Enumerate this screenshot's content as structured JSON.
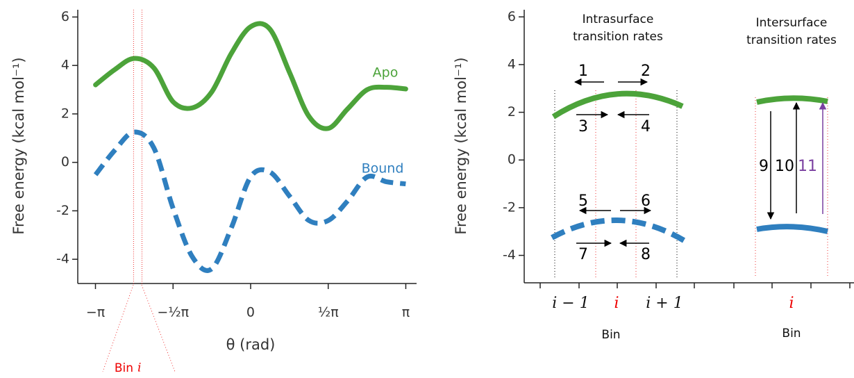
{
  "chart_data": [
    {
      "type": "line",
      "ylabel": "Free energy (kcal mol⁻¹)",
      "xlabel": "θ (rad)",
      "x": [
        -3.14,
        -2.75,
        -2.36,
        -1.96,
        -1.57,
        -1.18,
        -0.79,
        -0.39,
        0,
        0.39,
        0.79,
        1.18,
        1.57,
        1.96,
        2.36,
        2.75,
        3.14
      ],
      "series": [
        {
          "name": "Apo",
          "color": "#4ca33a",
          "dashed": false,
          "values": [
            3.2,
            3.83,
            4.29,
            3.9,
            2.5,
            2.25,
            2.9,
            4.5,
            5.6,
            5.5,
            3.7,
            1.9,
            1.4,
            2.2,
            3.0,
            3.1,
            3.03
          ]
        },
        {
          "name": "Bound",
          "color": "#2f7fbf",
          "dashed": true,
          "values": [
            -0.51,
            0.5,
            1.25,
            0.6,
            -1.9,
            -3.9,
            -4.4,
            -2.7,
            -0.6,
            -0.4,
            -1.4,
            -2.4,
            -2.4,
            -1.6,
            -0.6,
            -0.8,
            -0.89
          ]
        }
      ],
      "xlim": [
        -3.5,
        3.36
      ],
      "ylim": [
        -5,
        6.3
      ],
      "xticks": [
        {
          "value": -3.14159,
          "label": "−π"
        },
        {
          "value": -1.5708,
          "label": "−½π"
        },
        0,
        {
          "value": 1.5708,
          "label": "½π"
        },
        {
          "value": 3.14159,
          "label": "π"
        }
      ],
      "yticks": [
        -4,
        -2,
        0,
        2,
        4,
        6
      ],
      "bin_edges": [
        -2.37,
        -2.2
      ],
      "bin_label": [
        "Bin",
        "i"
      ]
    },
    {
      "type": "schematic",
      "ylabel": "Free energy (kcal mol⁻¹)",
      "ylim": [
        -5.15,
        6.3
      ],
      "yticks": [
        -4,
        -2,
        0,
        2,
        4,
        6
      ],
      "headers": [
        [
          "Intrasurface",
          "transition rates"
        ],
        [
          "Intersurface",
          "transition rates"
        ]
      ],
      "rate_labels": [
        "1",
        "2",
        "3",
        "4",
        "5",
        "6",
        "7",
        "8",
        "9",
        "10",
        "11"
      ],
      "bin_labels": [
        "i − 1",
        "i",
        "i + 1"
      ],
      "xlabel": "Bin",
      "inter_bin_label": "i",
      "inter_xlabel": "Bin"
    }
  ]
}
